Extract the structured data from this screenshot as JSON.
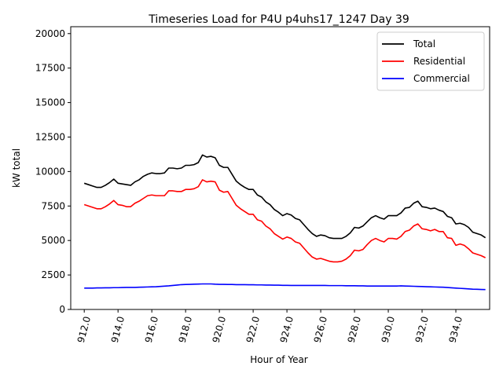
{
  "chart_data": {
    "type": "line",
    "title": "Timeseries Load for P4U p4uhs17_1247  Day 39",
    "xlabel": "Hour of Year",
    "ylabel": "kW total",
    "xlim": [
      911.2,
      936.0
    ],
    "ylim": [
      0,
      20500
    ],
    "x_ticks": [
      912.0,
      914.0,
      916.0,
      918.0,
      920.0,
      922.0,
      924.0,
      926.0,
      928.0,
      930.0,
      932.0,
      934.0
    ],
    "x_tick_labels": [
      "912.0",
      "914.0",
      "916.0",
      "918.0",
      "920.0",
      "922.0",
      "924.0",
      "926.0",
      "928.0",
      "930.0",
      "932.0",
      "934.0"
    ],
    "y_ticks": [
      0,
      2500,
      5000,
      7500,
      10000,
      12500,
      15000,
      17500,
      20000
    ],
    "y_tick_labels": [
      "0",
      "2500",
      "5000",
      "7500",
      "10000",
      "12500",
      "15000",
      "17500",
      "20000"
    ],
    "legend_position": "top-right",
    "x": [
      912.0,
      912.25,
      912.5,
      912.75,
      913.0,
      913.25,
      913.5,
      913.75,
      914.0,
      914.25,
      914.5,
      914.75,
      915.0,
      915.25,
      915.5,
      915.75,
      916.0,
      916.25,
      916.5,
      916.75,
      917.0,
      917.25,
      917.5,
      917.75,
      918.0,
      918.25,
      918.5,
      918.75,
      919.0,
      919.25,
      919.5,
      919.75,
      920.0,
      920.25,
      920.5,
      920.75,
      921.0,
      921.25,
      921.5,
      921.75,
      922.0,
      922.25,
      922.5,
      922.75,
      923.0,
      923.25,
      923.5,
      923.75,
      924.0,
      924.25,
      924.5,
      924.75,
      925.0,
      925.25,
      925.5,
      925.75,
      926.0,
      926.25,
      926.5,
      926.75,
      927.0,
      927.25,
      927.5,
      927.75,
      928.0,
      928.25,
      928.5,
      928.75,
      929.0,
      929.25,
      929.5,
      929.75,
      930.0,
      930.25,
      930.5,
      930.75,
      931.0,
      931.25,
      931.5,
      931.75,
      932.0,
      932.25,
      932.5,
      932.75,
      933.0,
      933.25,
      933.5,
      933.75,
      934.0,
      934.25,
      934.5,
      934.75,
      935.0,
      935.25,
      935.5,
      935.75
    ],
    "series": [
      {
        "name": "Total",
        "color": "#000000",
        "values": [
          9150,
          9050,
          8950,
          8850,
          8850,
          9000,
          9200,
          9450,
          9150,
          9100,
          9050,
          9000,
          9250,
          9400,
          9650,
          9800,
          9900,
          9850,
          9850,
          9900,
          10250,
          10250,
          10200,
          10250,
          10450,
          10450,
          10500,
          10650,
          11200,
          11050,
          11100,
          11000,
          10450,
          10300,
          10300,
          9800,
          9300,
          9050,
          8850,
          8700,
          8700,
          8300,
          8150,
          7800,
          7600,
          7250,
          7050,
          6800,
          6950,
          6850,
          6600,
          6500,
          6150,
          5800,
          5500,
          5300,
          5400,
          5350,
          5200,
          5150,
          5150,
          5150,
          5300,
          5550,
          5950,
          5900,
          6050,
          6350,
          6650,
          6800,
          6650,
          6550,
          6800,
          6800,
          6800,
          7000,
          7350,
          7400,
          7700,
          7850,
          7450,
          7400,
          7300,
          7350,
          7200,
          7100,
          6750,
          6650,
          6200,
          6250,
          6150,
          5950,
          5600,
          5500,
          5400,
          5200
        ]
      },
      {
        "name": "Residential",
        "color": "#ff0000",
        "values": [
          7600,
          7500,
          7400,
          7300,
          7300,
          7450,
          7650,
          7900,
          7600,
          7550,
          7450,
          7450,
          7700,
          7850,
          8050,
          8250,
          8300,
          8250,
          8250,
          8250,
          8600,
          8600,
          8550,
          8550,
          8700,
          8700,
          8750,
          8900,
          9400,
          9250,
          9300,
          9250,
          8650,
          8500,
          8550,
          8050,
          7550,
          7300,
          7100,
          6900,
          6900,
          6500,
          6400,
          6050,
          5850,
          5500,
          5300,
          5100,
          5250,
          5150,
          4900,
          4800,
          4450,
          4100,
          3800,
          3650,
          3700,
          3600,
          3500,
          3450,
          3450,
          3500,
          3650,
          3900,
          4300,
          4250,
          4350,
          4700,
          5000,
          5150,
          5000,
          4900,
          5150,
          5150,
          5100,
          5300,
          5650,
          5750,
          6050,
          6200,
          5850,
          5800,
          5700,
          5800,
          5650,
          5650,
          5200,
          5150,
          4650,
          4750,
          4650,
          4400,
          4100,
          4000,
          3900,
          3750
        ]
      },
      {
        "name": "Commercial",
        "color": "#0000ff",
        "values": [
          1550,
          1550,
          1550,
          1560,
          1560,
          1570,
          1570,
          1580,
          1580,
          1590,
          1600,
          1600,
          1600,
          1610,
          1620,
          1630,
          1640,
          1650,
          1670,
          1690,
          1710,
          1740,
          1770,
          1800,
          1810,
          1820,
          1830,
          1840,
          1850,
          1850,
          1850,
          1830,
          1820,
          1820,
          1810,
          1810,
          1800,
          1800,
          1800,
          1790,
          1790,
          1780,
          1780,
          1770,
          1770,
          1760,
          1760,
          1750,
          1750,
          1740,
          1740,
          1740,
          1740,
          1740,
          1740,
          1740,
          1740,
          1740,
          1730,
          1730,
          1730,
          1730,
          1720,
          1720,
          1720,
          1710,
          1710,
          1700,
          1700,
          1700,
          1700,
          1700,
          1700,
          1700,
          1700,
          1710,
          1700,
          1690,
          1680,
          1670,
          1660,
          1650,
          1640,
          1630,
          1620,
          1610,
          1590,
          1570,
          1550,
          1530,
          1510,
          1490,
          1470,
          1460,
          1450,
          1440
        ]
      }
    ]
  }
}
